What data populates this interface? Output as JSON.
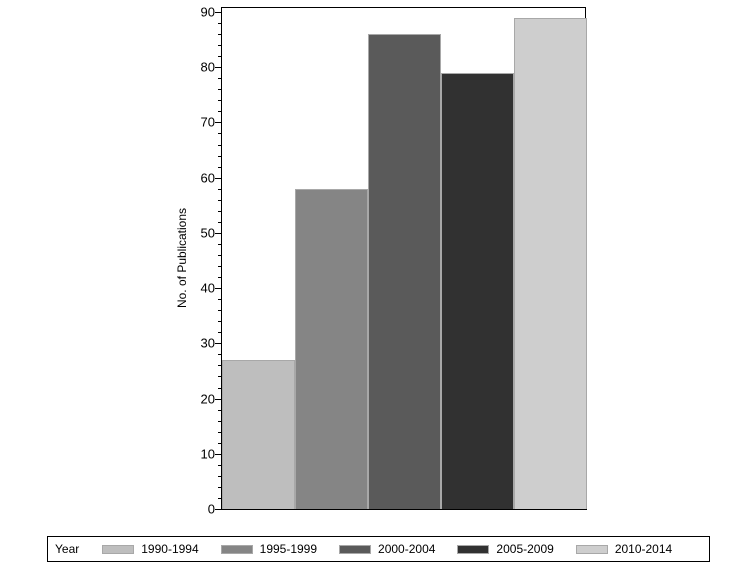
{
  "chart_data": {
    "type": "bar",
    "title": "",
    "xlabel": "",
    "ylabel": "No. of Publications",
    "ylim": [
      0,
      90
    ],
    "yticks": [
      0,
      10,
      20,
      30,
      40,
      50,
      60,
      70,
      80,
      90
    ],
    "grid": false,
    "legend_position": "bottom",
    "legend_title": "Year",
    "categories": [
      "1990-1994",
      "1995-1999",
      "2000-2004",
      "2005-2009",
      "2010-2014"
    ],
    "values": [
      27,
      58,
      86,
      79,
      89
    ],
    "colors": [
      "#bebebe",
      "#858585",
      "#5a5a5a",
      "#313131",
      "#cecece"
    ]
  }
}
